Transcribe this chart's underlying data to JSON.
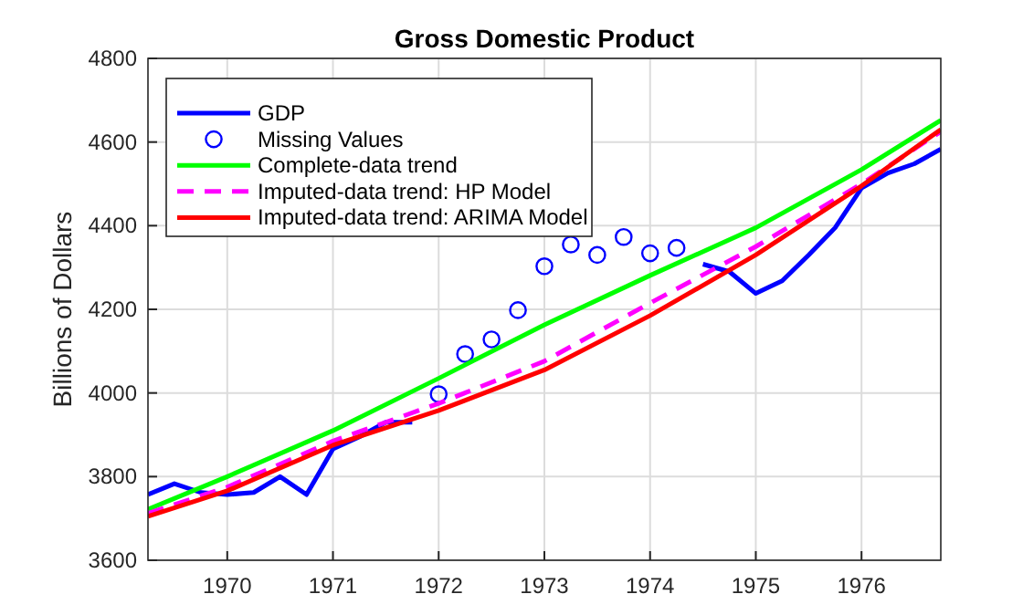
{
  "chart_data": {
    "type": "line",
    "title": "Gross Domestic Product",
    "ylabel": "Billions of Dollars",
    "xlim": [
      1969.25,
      1976.75
    ],
    "xticks": [
      1970,
      1971,
      1972,
      1973,
      1974,
      1975,
      1976
    ],
    "ylim": [
      3600,
      4800
    ],
    "yticks": [
      3600,
      3800,
      4000,
      4200,
      4400,
      4600,
      4800
    ],
    "grid": true,
    "legend": "top left",
    "series": [
      {
        "name": "GDP",
        "color": "#0000ff",
        "line_style": "solid",
        "x": [
          1969.25,
          1969.5,
          1969.75,
          1970,
          1970.25,
          1970.5,
          1970.75,
          1971,
          1971.25,
          1971.5,
          1971.75,
          1972,
          1972.25,
          1972.5,
          1972.75,
          1973,
          1973.25,
          1973.5,
          1973.75,
          1974,
          1974.25,
          1974.5,
          1974.75,
          1975,
          1975.25,
          1975.5,
          1975.75,
          1976,
          1976.25,
          1976.5,
          1976.75
        ],
        "values": [
          3757,
          3783,
          3762,
          3757,
          3762,
          3800,
          3757,
          3866,
          3895,
          3930,
          3930,
          null,
          null,
          null,
          null,
          null,
          null,
          null,
          null,
          null,
          null,
          4308,
          4290,
          4238,
          4268,
          4330,
          4395,
          4490,
          4526,
          4548,
          4583
        ]
      },
      {
        "name": "Missing Values",
        "type": "scatter",
        "marker": "circle",
        "color": "#0000ff",
        "x": [
          1972,
          1972.25,
          1972.5,
          1972.75,
          1973,
          1973.25,
          1973.5,
          1973.75,
          1974,
          1974.25
        ],
        "values": [
          3997,
          4093,
          4128,
          4198,
          4303,
          4355,
          4330,
          4373,
          4334,
          4347
        ]
      },
      {
        "name": "Complete-data trend",
        "color": "#00ff00",
        "line_style": "solid",
        "x": [
          1969.25,
          1970,
          1971,
          1972,
          1973,
          1974,
          1975,
          1976,
          1976.75
        ],
        "values": [
          3722,
          3800,
          3910,
          4035,
          4163,
          4281,
          4395,
          4534,
          4652
        ]
      },
      {
        "name": "Imputed-data trend: HP Model",
        "color": "#ff00ff",
        "line_style": "dashed",
        "x": [
          1969.25,
          1970,
          1971,
          1972,
          1973,
          1974,
          1975,
          1976,
          1976.75
        ],
        "values": [
          3712,
          3775,
          3885,
          3975,
          4076,
          4215,
          4350,
          4500,
          4625
        ]
      },
      {
        "name": "Imputed-data trend: ARIMA Model",
        "color": "#ff0000",
        "line_style": "solid",
        "x": [
          1969.25,
          1970,
          1971,
          1972,
          1973,
          1974,
          1975,
          1976,
          1976.75
        ],
        "values": [
          3705,
          3766,
          3875,
          3958,
          4055,
          4185,
          4330,
          4495,
          4630
        ]
      }
    ]
  }
}
